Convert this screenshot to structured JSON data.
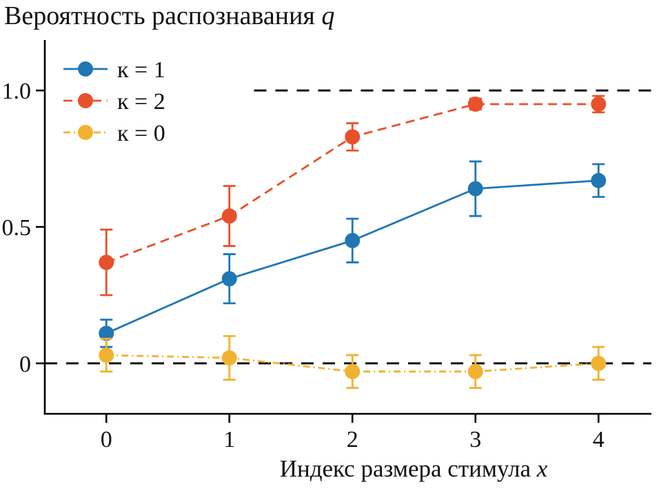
{
  "title": {
    "text": "Вероятность распознавания ",
    "var": "q"
  },
  "xlabel": {
    "text": "Индекс размера стимула ",
    "var": "x"
  },
  "chart_data": {
    "type": "line",
    "x": [
      0,
      1,
      2,
      3,
      4
    ],
    "series": [
      {
        "name": "к = 1",
        "color": "#1f77b4",
        "line_style": "solid",
        "marker": "circle",
        "values": [
          0.11,
          0.31,
          0.45,
          0.64,
          0.67
        ],
        "errors": [
          0.05,
          0.09,
          0.08,
          0.1,
          0.06
        ]
      },
      {
        "name": "к = 2",
        "color": "#e8502a",
        "line_style": "dashed",
        "marker": "circle",
        "values": [
          0.37,
          0.54,
          0.83,
          0.95,
          0.95
        ],
        "errors": [
          0.12,
          0.11,
          0.05,
          0.02,
          0.03
        ]
      },
      {
        "name": "к = 0",
        "color": "#f2b231",
        "line_style": "dashdot",
        "marker": "circle",
        "values": [
          0.03,
          0.02,
          -0.03,
          -0.03,
          0.0
        ],
        "errors": [
          0.06,
          0.08,
          0.06,
          0.06,
          0.06
        ]
      }
    ],
    "reference_lines": [
      {
        "y": 0.0,
        "style": "dashed",
        "color": "#000000",
        "x_start": -0.5,
        "x_end": 4.43
      },
      {
        "y": 1.0,
        "style": "dashed",
        "color": "#000000",
        "x_start": 1.2,
        "x_end": 4.43
      }
    ],
    "xticks": [
      {
        "value": 0,
        "label": "0"
      },
      {
        "value": 1,
        "label": "1"
      },
      {
        "value": 2,
        "label": "2"
      },
      {
        "value": 3,
        "label": "3"
      },
      {
        "value": 4,
        "label": "4"
      }
    ],
    "yticks": [
      {
        "value": 0,
        "label": "0"
      },
      {
        "value": 0.5,
        "label": "0.5"
      },
      {
        "value": 1.0,
        "label": "1.0"
      }
    ],
    "xlim": [
      -0.5,
      4.43
    ],
    "ylim": [
      -0.185,
      1.185
    ],
    "legend_position": "top-left",
    "grid": false
  }
}
